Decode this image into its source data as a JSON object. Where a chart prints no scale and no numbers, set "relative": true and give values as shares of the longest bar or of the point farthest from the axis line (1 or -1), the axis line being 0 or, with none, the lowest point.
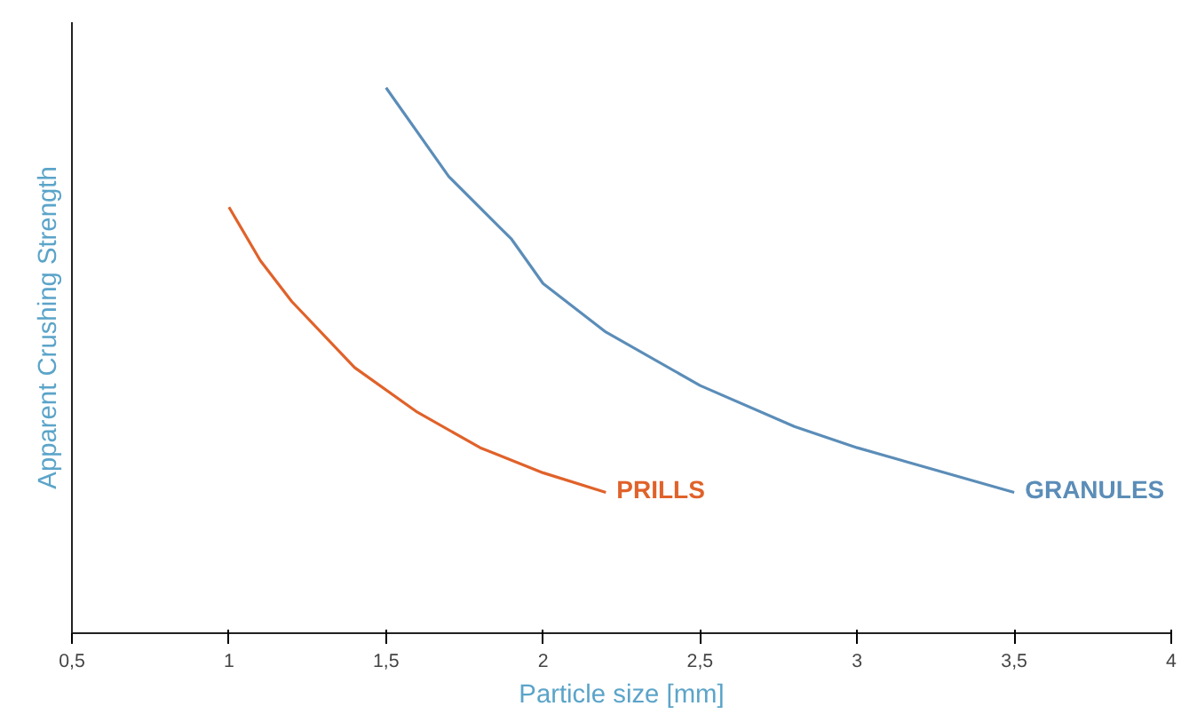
{
  "chart_data": {
    "type": "line",
    "relative": true,
    "xlabel": "Particle size [mm]",
    "ylabel": "Apparent Crushing Strength",
    "xlim": [
      0.5,
      4
    ],
    "xticks": [
      {
        "value": 0.5,
        "label": "0,5"
      },
      1,
      {
        "value": 1.5,
        "label": "1,5"
      },
      2,
      {
        "value": 2.5,
        "label": "2,5"
      },
      3,
      {
        "value": 3.5,
        "label": "3,5"
      },
      4
    ],
    "grid": false,
    "legend": false,
    "marker": "none",
    "line_style": "solid",
    "series": [
      {
        "name": "PRILLS",
        "color": "#e0622a",
        "x": [
          1.0,
          1.1,
          1.2,
          1.4,
          1.6,
          1.8,
          2.0,
          2.2
        ],
        "values": [
          0.781,
          0.683,
          0.608,
          0.487,
          0.405,
          0.34,
          0.294,
          0.258
        ]
      },
      {
        "name": "GRANULES",
        "color": "#5b8db8",
        "x": [
          1.5,
          1.7,
          1.9,
          2.0,
          2.2,
          2.5,
          2.8,
          3.0,
          3.5
        ],
        "values": [
          1.0,
          0.837,
          0.722,
          0.641,
          0.552,
          0.454,
          0.379,
          0.34,
          0.258
        ]
      }
    ]
  }
}
